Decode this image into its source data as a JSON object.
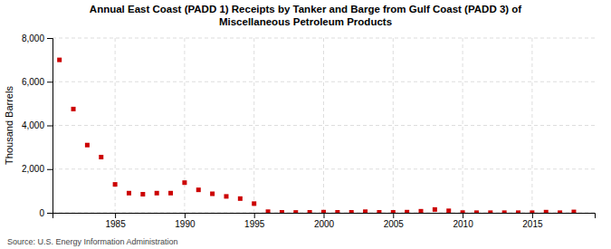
{
  "chart_data": {
    "type": "scatter",
    "title": "Annual East Coast (PADD 1) Receipts by Tanker and Barge from Gulf Coast (PADD 3) of\nMiscellaneous Petroleum Products",
    "ylabel": "Thousand Barrels",
    "annotations": [
      "Source: U.S. Energy Information Administration"
    ],
    "x": [
      1981,
      1982,
      1983,
      1984,
      1985,
      1986,
      1987,
      1988,
      1989,
      1990,
      1991,
      1992,
      1993,
      1994,
      1995,
      1996,
      1997,
      1998,
      1999,
      2000,
      2001,
      2002,
      2003,
      2004,
      2005,
      2006,
      2007,
      2008,
      2009,
      2010,
      2011,
      2012,
      2013,
      2014,
      2015,
      2016,
      2017,
      2018
    ],
    "values": [
      7000,
      4750,
      3100,
      2550,
      1300,
      900,
      850,
      900,
      900,
      1380,
      1050,
      870,
      750,
      650,
      420,
      50,
      20,
      15,
      20,
      30,
      20,
      20,
      50,
      20,
      20,
      30,
      70,
      150,
      90,
      10,
      5,
      5,
      5,
      5,
      5,
      30,
      5,
      40
    ],
    "color": "#cc0000",
    "marker": "square",
    "grid": true,
    "xlim": [
      1980.5,
      2019.5
    ],
    "ylim": [
      0,
      8000
    ],
    "xticks": [
      1985,
      1990,
      1995,
      2000,
      2005,
      2010,
      2015
    ],
    "yticks": [
      0,
      {
        "value": 2000,
        "label": "2,000"
      },
      {
        "value": 4000,
        "label": "4,000"
      },
      {
        "value": 6000,
        "label": "6,000"
      },
      {
        "value": 8000,
        "label": "8,000"
      }
    ]
  }
}
